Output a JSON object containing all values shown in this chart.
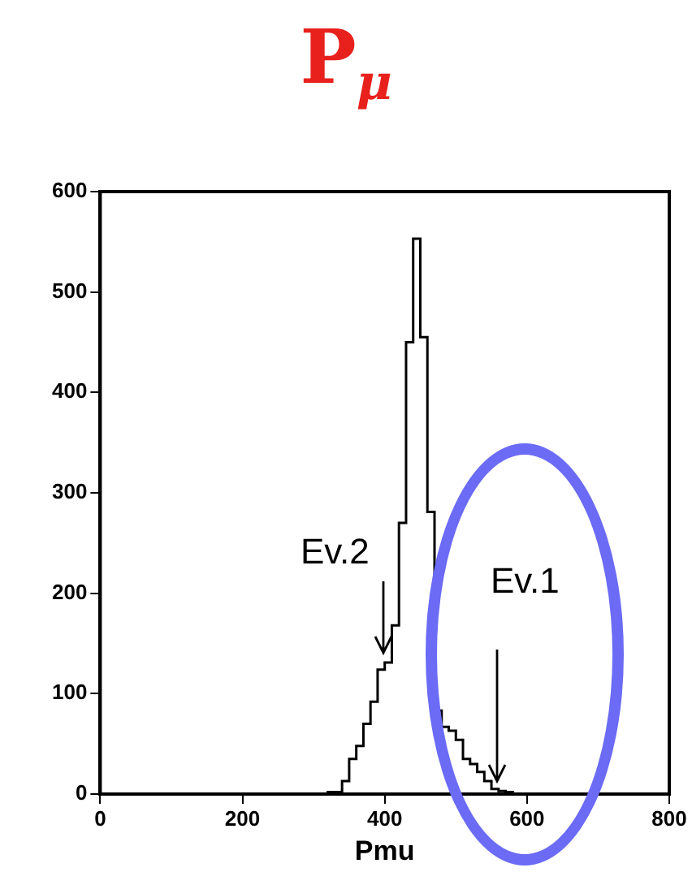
{
  "chart_data": {
    "type": "histogram",
    "title": "P$_{μ}$",
    "xlabel": "Pmu",
    "bins": [
      320,
      330,
      340,
      350,
      360,
      370,
      380,
      390,
      400,
      410,
      420,
      430,
      440,
      450,
      460,
      470,
      480,
      490,
      500,
      510,
      520,
      530,
      540,
      550,
      560,
      570,
      580
    ],
    "values": [
      2,
      2,
      13,
      35,
      48,
      70,
      92,
      124,
      131,
      168,
      270,
      450,
      553,
      455,
      281,
      83,
      67,
      63,
      54,
      35,
      30,
      22,
      13,
      5,
      3,
      2
    ],
    "color": "#000000",
    "xlim": [
      0,
      800
    ],
    "xticks": [
      0,
      200,
      400,
      600,
      800
    ],
    "ylim": [
      0,
      600
    ],
    "yticks": [
      0,
      100,
      200,
      300,
      400,
      500,
      600
    ],
    "grid": false,
    "legend": false,
    "annotations": [
      "Ev.2",
      "Ev.1"
    ]
  }
}
